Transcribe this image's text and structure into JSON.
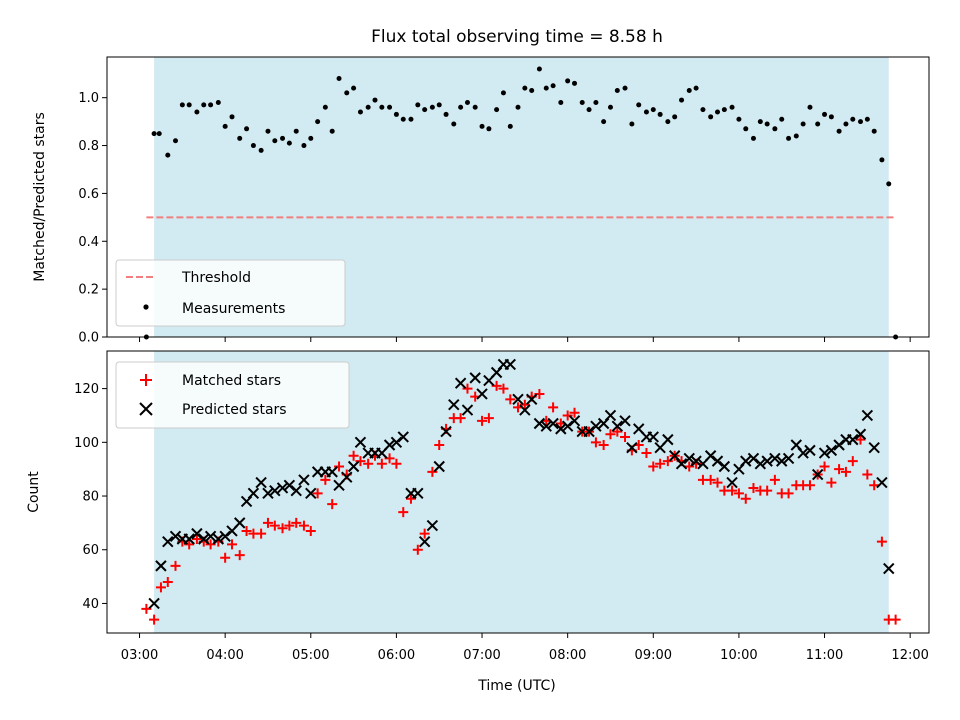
{
  "chart_data": [
    {
      "type": "scatter",
      "title": "Flux total observing time = 8.58 h",
      "xlabel": "",
      "ylabel": "Matched/Predicted stars",
      "ylim": [
        0,
        1.17
      ],
      "yticks": [
        0.0,
        0.2,
        0.4,
        0.6,
        0.8,
        1.0
      ],
      "ytick_labels": [
        "0.0",
        "0.2",
        "0.4",
        "0.6",
        "0.8",
        "1.0"
      ],
      "grid": false,
      "legend": "lower-left",
      "shaded_region": {
        "x_start": 3.17,
        "x_end": 11.75,
        "color": "#d2eaf1"
      },
      "threshold": {
        "name": "Threshold",
        "value": 0.5,
        "x_start": 3.08,
        "x_end": 11.83,
        "color": "#f08080",
        "style": "dashed"
      },
      "series": [
        {
          "name": "Measurements",
          "marker": "dot",
          "color": "#000000",
          "x": [
            3.08,
            3.17,
            3.23,
            3.33,
            3.42,
            3.5,
            3.58,
            3.67,
            3.75,
            3.83,
            3.92,
            4.0,
            4.08,
            4.17,
            4.25,
            4.33,
            4.42,
            4.5,
            4.58,
            4.67,
            4.75,
            4.83,
            4.92,
            5.0,
            5.08,
            5.17,
            5.25,
            5.33,
            5.42,
            5.5,
            5.58,
            5.67,
            5.75,
            5.83,
            5.92,
            6.0,
            6.08,
            6.17,
            6.25,
            6.33,
            6.42,
            6.5,
            6.58,
            6.67,
            6.75,
            6.83,
            6.92,
            7.0,
            7.08,
            7.17,
            7.25,
            7.33,
            7.42,
            7.5,
            7.58,
            7.67,
            7.75,
            7.83,
            7.92,
            8.0,
            8.08,
            8.17,
            8.25,
            8.33,
            8.42,
            8.5,
            8.58,
            8.67,
            8.75,
            8.83,
            8.92,
            9.0,
            9.08,
            9.17,
            9.25,
            9.33,
            9.42,
            9.5,
            9.58,
            9.67,
            9.75,
            9.83,
            9.92,
            10.0,
            10.08,
            10.17,
            10.25,
            10.33,
            10.42,
            10.5,
            10.58,
            10.67,
            10.75,
            10.83,
            10.92,
            11.0,
            11.08,
            11.17,
            11.25,
            11.33,
            11.42,
            11.5,
            11.58,
            11.67,
            11.75,
            11.83
          ],
          "y": [
            0.0,
            0.85,
            0.85,
            0.76,
            0.82,
            0.97,
            0.97,
            0.94,
            0.97,
            0.97,
            0.98,
            0.88,
            0.92,
            0.83,
            0.87,
            0.8,
            0.78,
            0.86,
            0.82,
            0.83,
            0.81,
            0.86,
            0.8,
            0.83,
            0.9,
            0.96,
            0.86,
            1.08,
            1.02,
            1.04,
            0.94,
            0.96,
            0.99,
            0.96,
            0.96,
            0.93,
            0.91,
            0.91,
            0.97,
            0.95,
            0.96,
            0.97,
            0.93,
            0.89,
            0.96,
            0.98,
            0.96,
            0.88,
            0.87,
            0.95,
            1.02,
            0.88,
            0.96,
            1.04,
            1.03,
            1.12,
            1.04,
            1.05,
            0.98,
            1.07,
            1.06,
            0.98,
            0.95,
            0.98,
            0.9,
            0.96,
            1.03,
            1.04,
            0.89,
            0.97,
            0.94,
            0.95,
            0.93,
            0.9,
            0.92,
            0.99,
            1.03,
            1.04,
            0.95,
            0.92,
            0.94,
            0.95,
            0.96,
            0.91,
            0.87,
            0.83,
            0.9,
            0.89,
            0.87,
            0.91,
            0.83,
            0.84,
            0.89,
            0.96,
            0.89,
            0.93,
            0.92,
            0.86,
            0.89,
            0.91,
            0.9,
            0.91,
            0.86,
            0.74,
            0.64,
            0.0
          ]
        }
      ]
    },
    {
      "type": "scatter",
      "title": "",
      "xlabel": "Time (UTC)",
      "ylabel": "Count",
      "xlim": [
        2.62,
        12.22
      ],
      "ylim": [
        29,
        134
      ],
      "xticks": [
        3,
        4,
        5,
        6,
        7,
        8,
        9,
        10,
        11,
        12
      ],
      "xtick_labels": [
        "03:00",
        "04:00",
        "05:00",
        "06:00",
        "07:00",
        "08:00",
        "09:00",
        "10:00",
        "11:00",
        "12:00"
      ],
      "yticks": [
        40,
        60,
        80,
        100,
        120
      ],
      "ytick_labels": [
        "40",
        "60",
        "80",
        "100",
        "120"
      ],
      "grid": false,
      "legend": "top-left",
      "shaded_region": {
        "x_start": 3.17,
        "x_end": 11.75,
        "color": "#d2eaf1"
      },
      "series": [
        {
          "name": "Matched stars",
          "marker": "plus",
          "color": "#ff0000",
          "x": [
            3.08,
            3.17,
            3.25,
            3.33,
            3.42,
            3.5,
            3.58,
            3.67,
            3.75,
            3.83,
            3.92,
            4.0,
            4.08,
            4.17,
            4.25,
            4.33,
            4.42,
            4.5,
            4.58,
            4.67,
            4.75,
            4.83,
            4.92,
            5.0,
            5.08,
            5.17,
            5.25,
            5.33,
            5.42,
            5.5,
            5.58,
            5.67,
            5.75,
            5.83,
            5.92,
            6.0,
            6.08,
            6.17,
            6.25,
            6.33,
            6.42,
            6.5,
            6.58,
            6.67,
            6.75,
            6.83,
            6.92,
            7.0,
            7.08,
            7.17,
            7.25,
            7.33,
            7.42,
            7.5,
            7.58,
            7.67,
            7.75,
            7.83,
            7.92,
            8.0,
            8.08,
            8.17,
            8.25,
            8.33,
            8.42,
            8.5,
            8.58,
            8.67,
            8.75,
            8.83,
            8.92,
            9.0,
            9.08,
            9.17,
            9.25,
            9.33,
            9.42,
            9.5,
            9.58,
            9.67,
            9.75,
            9.83,
            9.92,
            10.0,
            10.08,
            10.17,
            10.25,
            10.33,
            10.42,
            10.5,
            10.58,
            10.67,
            10.75,
            10.83,
            10.92,
            11.0,
            11.08,
            11.17,
            11.25,
            11.33,
            11.42,
            11.5,
            11.58,
            11.67,
            11.75,
            11.83
          ],
          "y": [
            38,
            34,
            46,
            48,
            54,
            63,
            62,
            64,
            63,
            62,
            63,
            57,
            62,
            58,
            67,
            66,
            66,
            70,
            69,
            68,
            69,
            70,
            69,
            67,
            81,
            86,
            77,
            91,
            88,
            95,
            93,
            92,
            95,
            92,
            94,
            92,
            74,
            79,
            60,
            66,
            89,
            99,
            105,
            109,
            109,
            120,
            117,
            108,
            109,
            121,
            120,
            116,
            113,
            114,
            117,
            118,
            108,
            113,
            107,
            110,
            111,
            104,
            104,
            100,
            99,
            103,
            104,
            102,
            97,
            99,
            96,
            91,
            92,
            93,
            95,
            93,
            91,
            92,
            86,
            86,
            85,
            82,
            82,
            81,
            79,
            83,
            82,
            82,
            86,
            81,
            81,
            84,
            84,
            84,
            88,
            91,
            85,
            90,
            89,
            93,
            101,
            88,
            84,
            63,
            34,
            34
          ]
        },
        {
          "name": "Predicted stars",
          "marker": "x",
          "color": "#000000",
          "x": [
            3.17,
            3.25,
            3.33,
            3.42,
            3.5,
            3.58,
            3.67,
            3.75,
            3.83,
            3.92,
            4.0,
            4.08,
            4.17,
            4.25,
            4.33,
            4.42,
            4.5,
            4.58,
            4.67,
            4.75,
            4.83,
            4.92,
            5.0,
            5.08,
            5.17,
            5.25,
            5.33,
            5.42,
            5.5,
            5.58,
            5.67,
            5.75,
            5.83,
            5.92,
            6.0,
            6.08,
            6.17,
            6.25,
            6.33,
            6.42,
            6.5,
            6.58,
            6.67,
            6.75,
            6.83,
            6.92,
            7.0,
            7.08,
            7.17,
            7.25,
            7.33,
            7.42,
            7.5,
            7.58,
            7.67,
            7.75,
            7.83,
            7.92,
            8.0,
            8.08,
            8.17,
            8.25,
            8.33,
            8.42,
            8.5,
            8.58,
            8.67,
            8.75,
            8.83,
            8.92,
            9.0,
            9.08,
            9.17,
            9.25,
            9.33,
            9.42,
            9.5,
            9.58,
            9.67,
            9.75,
            9.83,
            9.92,
            10.0,
            10.08,
            10.17,
            10.25,
            10.33,
            10.42,
            10.5,
            10.58,
            10.67,
            10.75,
            10.83,
            10.92,
            11.0,
            11.08,
            11.17,
            11.25,
            11.33,
            11.42,
            11.5,
            11.58,
            11.67,
            11.75
          ],
          "y": [
            40,
            54,
            63,
            65,
            64,
            64,
            66,
            64,
            65,
            64,
            65,
            67,
            70,
            78,
            81,
            85,
            81,
            82,
            83,
            84,
            82,
            86,
            81,
            89,
            89,
            89,
            84,
            87,
            91,
            100,
            96,
            96,
            96,
            99,
            100,
            102,
            81,
            81,
            63,
            69,
            91,
            104,
            114,
            122,
            112,
            124,
            118,
            123,
            126,
            129,
            129,
            116,
            112,
            116,
            107,
            106,
            107,
            105,
            106,
            108,
            104,
            104,
            106,
            107,
            110,
            106,
            108,
            98,
            105,
            102,
            102,
            98,
            101,
            95,
            92,
            94,
            93,
            92,
            95,
            93,
            91,
            85,
            90,
            93,
            94,
            92,
            93,
            94,
            93,
            94,
            99,
            96,
            97,
            88,
            96,
            97,
            99,
            101,
            101,
            103,
            110,
            98,
            85,
            53
          ]
        }
      ]
    }
  ]
}
